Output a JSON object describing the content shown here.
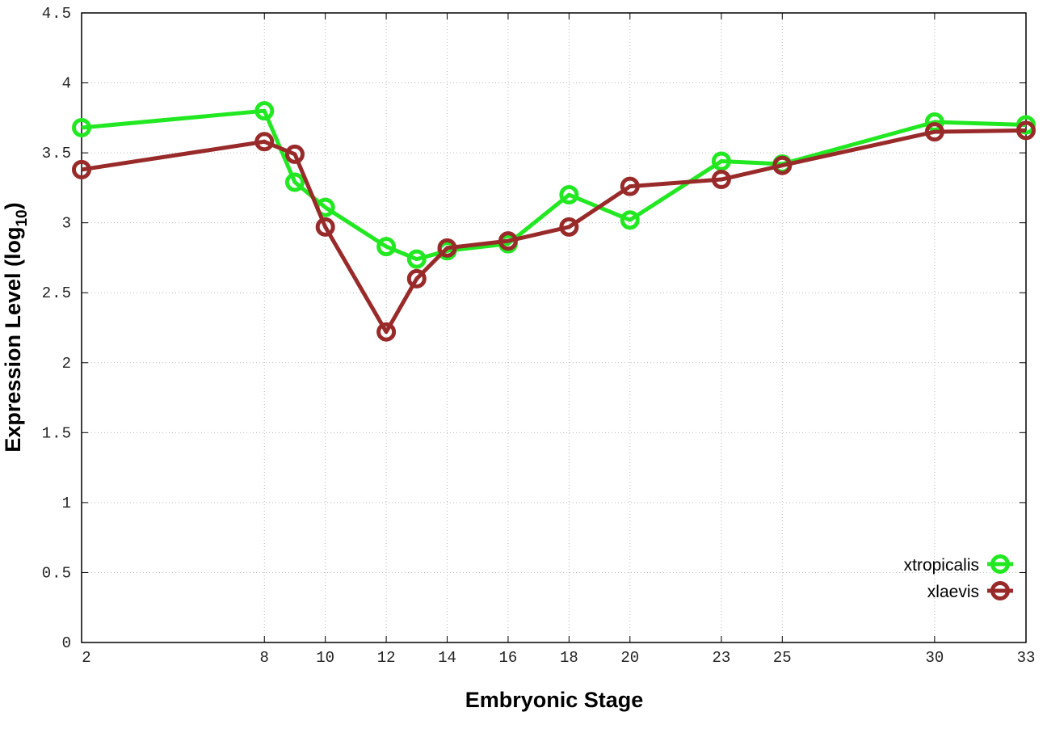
{
  "chart_data": {
    "type": "line",
    "title": "",
    "xlabel": "Embryonic Stage",
    "ylabel": "Expression Level (log",
    "ylabel_subscript": "10",
    "ylabel_close": ")",
    "xlim": [
      2,
      33
    ],
    "ylim": [
      0,
      4.5
    ],
    "grid": true,
    "legend_position": "bottom-right",
    "x_ticks": [
      2,
      8,
      10,
      12,
      14,
      16,
      18,
      20,
      23,
      25,
      30,
      33
    ],
    "y_ticks": [
      "0",
      "0.5",
      "1",
      "1.5",
      "2",
      "2.5",
      "3",
      "3.5",
      "4",
      "4.5"
    ],
    "x": [
      2,
      8,
      9,
      10,
      12,
      13,
      14,
      16,
      18,
      20,
      23,
      25,
      30,
      33
    ],
    "series": [
      {
        "name": "xtropicalis",
        "color": "#22e822",
        "values": [
          3.68,
          3.8,
          3.29,
          3.11,
          2.83,
          2.74,
          2.8,
          2.85,
          3.2,
          3.02,
          3.44,
          3.42,
          3.72,
          3.7
        ]
      },
      {
        "name": "xlaevis",
        "color": "#992a2a",
        "values": [
          3.38,
          3.58,
          3.49,
          2.97,
          2.22,
          2.6,
          2.82,
          2.87,
          2.97,
          3.26,
          3.31,
          3.41,
          3.65,
          3.66
        ]
      }
    ]
  }
}
